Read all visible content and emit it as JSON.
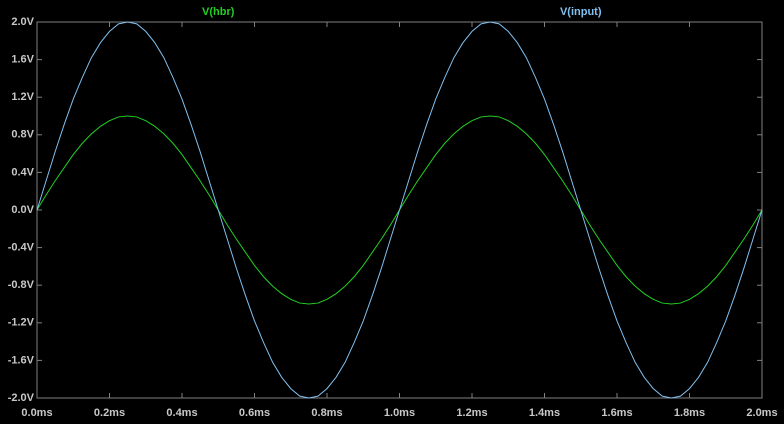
{
  "chart_data": {
    "type": "line",
    "x": [
      0,
      0.025,
      0.05,
      0.075,
      0.1,
      0.125,
      0.15,
      0.175,
      0.2,
      0.225,
      0.25,
      0.275,
      0.3,
      0.325,
      0.35,
      0.375,
      0.4,
      0.425,
      0.45,
      0.475,
      0.5,
      0.525,
      0.55,
      0.575,
      0.6,
      0.625,
      0.65,
      0.675,
      0.7,
      0.725,
      0.75,
      0.775,
      0.8,
      0.825,
      0.85,
      0.875,
      0.9,
      0.925,
      0.95,
      0.975,
      1,
      1.025,
      1.05,
      1.075,
      1.1,
      1.125,
      1.15,
      1.175,
      1.2,
      1.225,
      1.25,
      1.275,
      1.3,
      1.325,
      1.35,
      1.375,
      1.4,
      1.425,
      1.45,
      1.475,
      1.5,
      1.525,
      1.55,
      1.575,
      1.6,
      1.625,
      1.65,
      1.675,
      1.7,
      1.725,
      1.75,
      1.775,
      1.8,
      1.825,
      1.85,
      1.875,
      1.9,
      1.925,
      1.95,
      1.975,
      2
    ],
    "series": [
      {
        "name": "V(hbr)",
        "color": "#22d022",
        "values": [
          0,
          0.16,
          0.31,
          0.45,
          0.59,
          0.71,
          0.81,
          0.89,
          0.95,
          0.99,
          1,
          0.99,
          0.95,
          0.89,
          0.81,
          0.71,
          0.59,
          0.45,
          0.31,
          0.16,
          0,
          -0.16,
          -0.31,
          -0.45,
          -0.59,
          -0.71,
          -0.81,
          -0.89,
          -0.95,
          -0.99,
          -1,
          -0.99,
          -0.95,
          -0.89,
          -0.81,
          -0.71,
          -0.59,
          -0.45,
          -0.31,
          -0.16,
          0,
          0.16,
          0.31,
          0.45,
          0.59,
          0.71,
          0.81,
          0.89,
          0.95,
          0.99,
          1,
          0.99,
          0.95,
          0.89,
          0.81,
          0.71,
          0.59,
          0.45,
          0.31,
          0.16,
          0,
          -0.16,
          -0.31,
          -0.45,
          -0.59,
          -0.71,
          -0.81,
          -0.89,
          -0.95,
          -0.99,
          -1,
          -0.99,
          -0.95,
          -0.89,
          -0.81,
          -0.71,
          -0.59,
          -0.45,
          -0.31,
          -0.16,
          0
        ]
      },
      {
        "name": "V(input)",
        "color": "#80c0f0",
        "values": [
          0,
          0.31,
          0.62,
          0.91,
          1.18,
          1.41,
          1.62,
          1.78,
          1.9,
          1.98,
          2,
          1.98,
          1.9,
          1.78,
          1.62,
          1.41,
          1.18,
          0.91,
          0.62,
          0.31,
          0,
          -0.31,
          -0.62,
          -0.91,
          -1.18,
          -1.41,
          -1.62,
          -1.78,
          -1.9,
          -1.98,
          -2,
          -1.98,
          -1.9,
          -1.78,
          -1.62,
          -1.41,
          -1.18,
          -0.91,
          -0.62,
          -0.31,
          0,
          0.31,
          0.62,
          0.91,
          1.18,
          1.41,
          1.62,
          1.78,
          1.9,
          1.98,
          2,
          1.98,
          1.9,
          1.78,
          1.62,
          1.41,
          1.18,
          0.91,
          0.62,
          0.31,
          0,
          -0.31,
          -0.62,
          -0.91,
          -1.18,
          -1.41,
          -1.62,
          -1.78,
          -1.9,
          -1.98,
          -2,
          -1.98,
          -1.9,
          -1.78,
          -1.62,
          -1.41,
          -1.18,
          -0.91,
          -0.62,
          -0.31,
          0
        ]
      }
    ],
    "xlim": [
      0,
      2
    ],
    "xticks": [
      {
        "value": 0,
        "label": "0.0ms"
      },
      {
        "value": 0.2,
        "label": "0.2ms"
      },
      {
        "value": 0.4,
        "label": "0.4ms"
      },
      {
        "value": 0.6,
        "label": "0.6ms"
      },
      {
        "value": 0.8,
        "label": "0.8ms"
      },
      {
        "value": 1,
        "label": "1.0ms"
      },
      {
        "value": 1.2,
        "label": "1.2ms"
      },
      {
        "value": 1.4,
        "label": "1.4ms"
      },
      {
        "value": 1.6,
        "label": "1.6ms"
      },
      {
        "value": 1.8,
        "label": "1.8ms"
      },
      {
        "value": 2,
        "label": "2.0ms"
      }
    ],
    "ylim": [
      -2,
      2
    ],
    "yticks": [
      {
        "value": -2,
        "label": "-2.0V"
      },
      {
        "value": -1.6,
        "label": "-1.6V"
      },
      {
        "value": -1.2,
        "label": "-1.2V"
      },
      {
        "value": -0.8,
        "label": "-0.8V"
      },
      {
        "value": -0.4,
        "label": "-0.4V"
      },
      {
        "value": 0,
        "label": "0.0V"
      },
      {
        "value": 0.4,
        "label": "0.4V"
      },
      {
        "value": 0.8,
        "label": "0.8V"
      },
      {
        "value": 1.2,
        "label": "1.2V"
      },
      {
        "value": 1.6,
        "label": "1.6V"
      },
      {
        "value": 2,
        "label": "2.0V"
      }
    ],
    "grid": false
  }
}
